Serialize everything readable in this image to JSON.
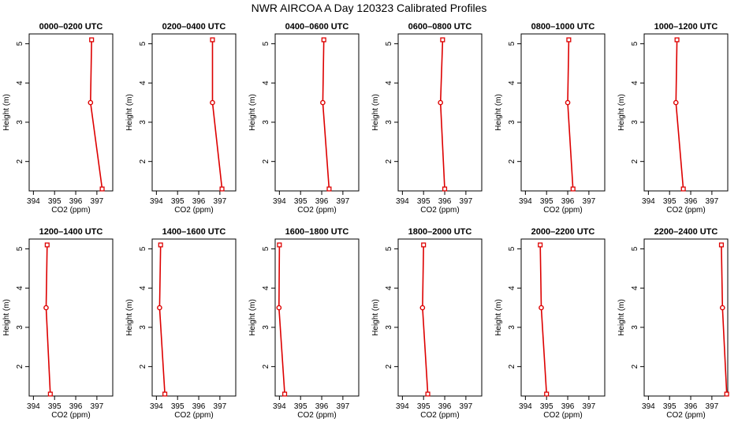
{
  "chart_data": {
    "type": "line",
    "title": "NWR AIRCOA A  Day 120323  Calibrated Profiles",
    "xlabel": "CO2 (ppm)",
    "ylabel": "Height (m)",
    "xlim": [
      393.8,
      397.75
    ],
    "ylim": [
      1.25,
      5.25
    ],
    "xticks": [
      394,
      395,
      396,
      397
    ],
    "yticks": [
      2,
      3,
      4,
      5
    ],
    "heights": [
      5.1,
      3.5,
      1.3
    ],
    "series": [
      {
        "name": "0000–0200 UTC",
        "values": [
          396.75,
          396.7,
          397.25
        ]
      },
      {
        "name": "0200–0400 UTC",
        "values": [
          396.65,
          396.65,
          397.1
        ]
      },
      {
        "name": "0400–0600 UTC",
        "values": [
          396.1,
          396.05,
          396.35
        ]
      },
      {
        "name": "0600–0800 UTC",
        "values": [
          395.9,
          395.8,
          396.0
        ]
      },
      {
        "name": "0800–1000 UTC",
        "values": [
          396.05,
          396.0,
          396.25
        ]
      },
      {
        "name": "1000–1200 UTC",
        "values": [
          395.35,
          395.3,
          395.65
        ]
      },
      {
        "name": "1200–1400 UTC",
        "values": [
          394.65,
          394.6,
          394.8
        ]
      },
      {
        "name": "1400–1600 UTC",
        "values": [
          394.2,
          394.15,
          394.4
        ]
      },
      {
        "name": "1600–1800 UTC",
        "values": [
          394.0,
          393.98,
          394.25
        ]
      },
      {
        "name": "1800–2000 UTC",
        "values": [
          395.0,
          394.95,
          395.2
        ]
      },
      {
        "name": "2000–2200 UTC",
        "values": [
          394.7,
          394.75,
          395.0
        ]
      },
      {
        "name": "2200–2400 UTC",
        "values": [
          397.45,
          397.5,
          397.7
        ]
      }
    ]
  },
  "colors": {
    "series": "#dd0000",
    "axes": "#000000"
  }
}
